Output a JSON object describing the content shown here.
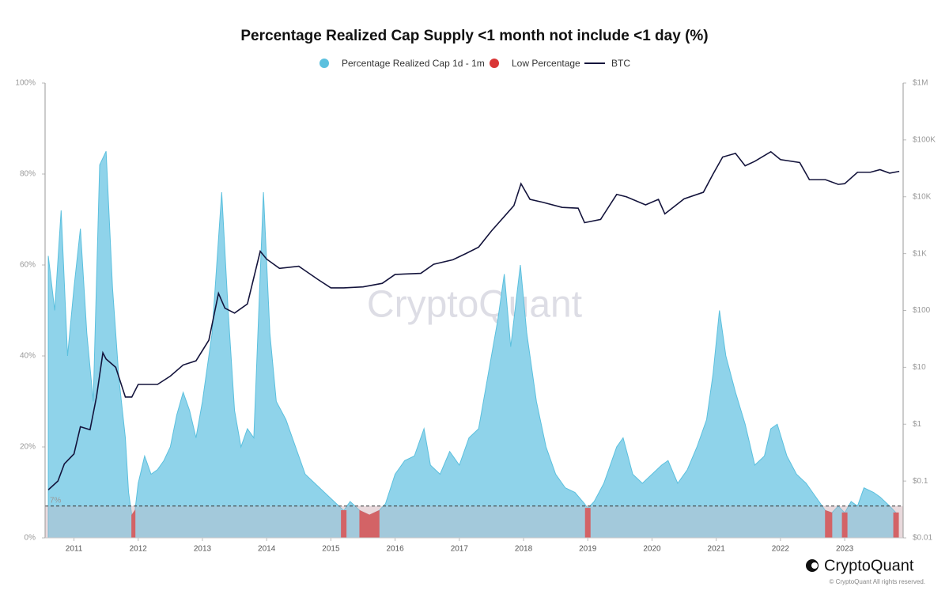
{
  "chart_data": {
    "type": "area_line",
    "title": "Percentage Realized Cap Supply <1 month not include <1 day (%)",
    "watermark": "CryptoQuant",
    "brand": "CryptoQuant",
    "copyright": "© CryptoQuant All rights reserved.",
    "xlim": [
      2010.55,
      2023.91
    ],
    "xticks": [
      2011,
      2012,
      2013,
      2014,
      2015,
      2016,
      2017,
      2018,
      2019,
      2020,
      2021,
      2022,
      2023
    ],
    "ylim": [
      0,
      100
    ],
    "yticks": [
      {
        "value": 0,
        "label": "0%"
      },
      {
        "value": 20,
        "label": "20%"
      },
      {
        "value": 40,
        "label": "40%"
      },
      {
        "value": 60,
        "label": "60%"
      },
      {
        "value": 80,
        "label": "80%"
      },
      {
        "value": 100,
        "label": "100%"
      }
    ],
    "y2lim": [
      0.01,
      1000000
    ],
    "y2log": true,
    "y2ticks": [
      {
        "value": 0.01,
        "label": "$0.01"
      },
      {
        "value": 0.1,
        "label": "$0.1"
      },
      {
        "value": 1,
        "label": "$1"
      },
      {
        "value": 10,
        "label": "$10"
      },
      {
        "value": 100,
        "label": "$100"
      },
      {
        "value": 1000,
        "label": "$1K"
      },
      {
        "value": 10000,
        "label": "$10K"
      },
      {
        "value": 100000,
        "label": "$100K"
      },
      {
        "value": 1000000,
        "label": "$1M"
      }
    ],
    "threshold": {
      "value": 7,
      "label": "7%"
    },
    "x": [
      2010.6,
      2010.7,
      2010.8,
      2010.9,
      2011.0,
      2011.1,
      2011.2,
      2011.3,
      2011.4,
      2011.5,
      2011.6,
      2011.7,
      2011.8,
      2011.85,
      2011.9,
      2011.95,
      2012.0,
      2012.1,
      2012.2,
      2012.3,
      2012.4,
      2012.5,
      2012.6,
      2012.7,
      2012.8,
      2012.9,
      2013.0,
      2013.15,
      2013.3,
      2013.4,
      2013.5,
      2013.6,
      2013.7,
      2013.8,
      2013.95,
      2014.05,
      2014.15,
      2014.3,
      2014.45,
      2014.6,
      2014.75,
      2014.9,
      2015.05,
      2015.2,
      2015.3,
      2015.45,
      2015.6,
      2015.75,
      2015.85,
      2016.0,
      2016.15,
      2016.3,
      2016.45,
      2016.55,
      2016.7,
      2016.85,
      2017.0,
      2017.15,
      2017.3,
      2017.45,
      2017.6,
      2017.7,
      2017.8,
      2017.95,
      2018.05,
      2018.2,
      2018.35,
      2018.5,
      2018.65,
      2018.8,
      2018.95,
      2019.0,
      2019.1,
      2019.25,
      2019.45,
      2019.55,
      2019.7,
      2019.85,
      2020.0,
      2020.15,
      2020.25,
      2020.4,
      2020.55,
      2020.7,
      2020.85,
      2020.95,
      2021.05,
      2021.15,
      2021.3,
      2021.45,
      2021.6,
      2021.75,
      2021.85,
      2021.95,
      2022.1,
      2022.25,
      2022.4,
      2022.5,
      2022.6,
      2022.7,
      2022.8,
      2022.9,
      2023.0,
      2023.1,
      2023.2,
      2023.3,
      2023.45,
      2023.55,
      2023.7,
      2023.8
    ],
    "series": [
      {
        "name": "Percentage Realized Cap 1d - 1m",
        "color": "#5bc0de",
        "fill": "#8fd3ea",
        "values": [
          62,
          50,
          72,
          40,
          55,
          68,
          45,
          30,
          82,
          85,
          55,
          35,
          22,
          10,
          5,
          6,
          12,
          18,
          14,
          15,
          17,
          20,
          27,
          32,
          28,
          22,
          30,
          45,
          76,
          50,
          28,
          20,
          24,
          22,
          76,
          45,
          30,
          26,
          20,
          14,
          12,
          10,
          8,
          6,
          8,
          6,
          5,
          6,
          7.5,
          14,
          17,
          18,
          24,
          16,
          14,
          19,
          16,
          22,
          24,
          36,
          48,
          58,
          42,
          60,
          45,
          30,
          20,
          14,
          11,
          10,
          7.5,
          6.5,
          8,
          12,
          20,
          22,
          14,
          12,
          14,
          16,
          17,
          12,
          15,
          20,
          26,
          36,
          50,
          40,
          32,
          25,
          16,
          18,
          24,
          25,
          18,
          14,
          12,
          10,
          8,
          6,
          5.5,
          7,
          5.5,
          8,
          7,
          11,
          10,
          9,
          7,
          5.5
        ]
      },
      {
        "name": "Low Percentage",
        "color": "#d93636",
        "values": [
          null,
          null,
          null,
          null,
          null,
          null,
          null,
          null,
          null,
          null,
          null,
          null,
          null,
          null,
          5,
          6,
          null,
          null,
          null,
          null,
          null,
          null,
          null,
          null,
          null,
          null,
          null,
          null,
          null,
          null,
          null,
          null,
          null,
          null,
          null,
          null,
          null,
          null,
          null,
          null,
          null,
          null,
          null,
          6,
          null,
          6,
          5,
          6,
          null,
          null,
          null,
          null,
          null,
          null,
          null,
          null,
          null,
          null,
          null,
          null,
          null,
          null,
          null,
          null,
          null,
          null,
          null,
          null,
          null,
          null,
          null,
          6.5,
          null,
          null,
          null,
          null,
          null,
          null,
          null,
          null,
          null,
          null,
          null,
          null,
          null,
          null,
          null,
          null,
          null,
          null,
          null,
          null,
          null,
          null,
          null,
          null,
          null,
          null,
          null,
          6,
          5.5,
          null,
          5.5,
          null,
          null,
          null,
          null,
          null,
          null,
          5.5
        ]
      },
      {
        "name": "BTC",
        "color": "#14143c",
        "axis": "y2",
        "x": [
          2010.6,
          2010.75,
          2010.85,
          2011.0,
          2011.1,
          2011.25,
          2011.35,
          2011.45,
          2011.5,
          2011.65,
          2011.8,
          2011.9,
          2012.0,
          2012.3,
          2012.5,
          2012.7,
          2012.9,
          2013.1,
          2013.25,
          2013.35,
          2013.5,
          2013.7,
          2013.9,
          2014.0,
          2014.2,
          2014.5,
          2014.8,
          2015.0,
          2015.2,
          2015.5,
          2015.8,
          2016.0,
          2016.4,
          2016.6,
          2016.9,
          2017.1,
          2017.3,
          2017.5,
          2017.7,
          2017.85,
          2017.96,
          2018.1,
          2018.3,
          2018.6,
          2018.85,
          2018.95,
          2019.2,
          2019.45,
          2019.6,
          2019.9,
          2020.1,
          2020.2,
          2020.5,
          2020.8,
          2020.95,
          2021.1,
          2021.3,
          2021.45,
          2021.6,
          2021.85,
          2022.0,
          2022.3,
          2022.45,
          2022.7,
          2022.9,
          2023.0,
          2023.2,
          2023.4,
          2023.55,
          2023.7,
          2023.85
        ],
        "values": [
          0.07,
          0.1,
          0.2,
          0.3,
          0.9,
          0.8,
          3,
          18,
          14,
          10,
          3,
          3,
          5,
          5,
          7,
          11,
          13,
          30,
          200,
          110,
          90,
          130,
          1100,
          800,
          550,
          600,
          350,
          250,
          250,
          260,
          300,
          430,
          450,
          650,
          780,
          1000,
          1300,
          2500,
          4500,
          7000,
          17000,
          9000,
          8000,
          6500,
          6300,
          3500,
          4000,
          11000,
          10000,
          7200,
          9000,
          5000,
          9200,
          12000,
          25000,
          50000,
          58000,
          35000,
          42000,
          62000,
          45000,
          40000,
          20000,
          20000,
          16500,
          17000,
          27000,
          27000,
          30000,
          26000,
          28000
        ]
      }
    ]
  }
}
